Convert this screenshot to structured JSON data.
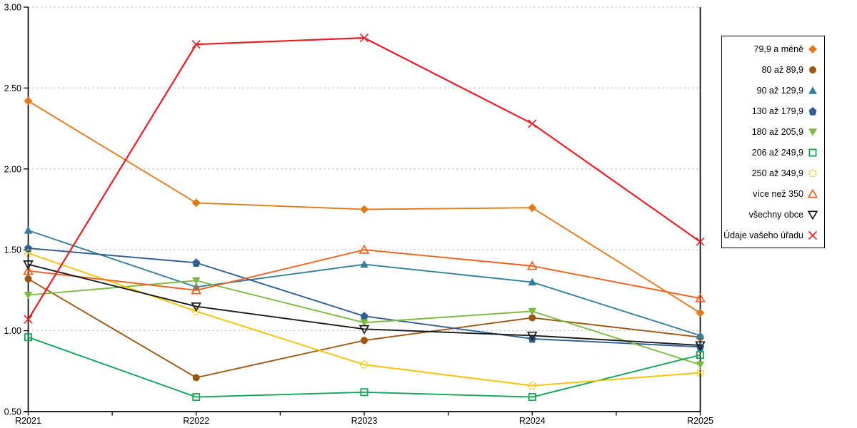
{
  "chart_data": {
    "type": "line",
    "title": "",
    "xlabel": "",
    "ylabel": "",
    "x": [
      "R2021",
      "R2022",
      "R2023",
      "R2024",
      "R2025"
    ],
    "ylim": [
      0.5,
      3.0
    ],
    "yticks": [
      0.5,
      1.0,
      1.5,
      2.0,
      2.5,
      3.0
    ],
    "ytick_labels": [
      "0.50",
      "1.00",
      "1.50",
      "2.00",
      "2.50",
      "3.00"
    ],
    "grid": "horizontal-dotted",
    "grid_color": "#bdbdbd",
    "axis_color": "#000000",
    "legend_position": "right",
    "series": [
      {
        "name": "79,9 a méně",
        "color": "#E07B1A",
        "marker": "diamond",
        "fill": true,
        "values": [
          2.42,
          1.79,
          1.75,
          1.76,
          1.11
        ]
      },
      {
        "name": "80 až 89,9",
        "color": "#9C5610",
        "marker": "circle",
        "fill": true,
        "values": [
          1.32,
          0.71,
          0.94,
          1.08,
          0.96
        ]
      },
      {
        "name": "90 až 129,9",
        "color": "#33809C",
        "marker": "triangle-up",
        "fill": true,
        "values": [
          1.62,
          1.27,
          1.41,
          1.3,
          0.97
        ]
      },
      {
        "name": "130 až 179,9",
        "color": "#305E92",
        "marker": "pentagon",
        "fill": true,
        "values": [
          1.51,
          1.42,
          1.09,
          0.95,
          0.9
        ]
      },
      {
        "name": "180 až 205,9",
        "color": "#7CBA41",
        "marker": "triangle-down",
        "fill": true,
        "values": [
          1.22,
          1.31,
          1.05,
          1.12,
          0.79
        ]
      },
      {
        "name": "206 až 249,9",
        "color": "#12A458",
        "marker": "square",
        "fill": false,
        "values": [
          0.96,
          0.59,
          0.62,
          0.59,
          0.85
        ]
      },
      {
        "name": "250 až 349,9",
        "color": "#F6C200",
        "marker": "circle-dashed",
        "fill": false,
        "values": [
          1.48,
          1.12,
          0.79,
          0.66,
          0.74
        ]
      },
      {
        "name": "více než 350",
        "color": "#F2611C",
        "marker": "triangle-up",
        "fill": false,
        "values": [
          1.37,
          1.25,
          1.5,
          1.4,
          1.2
        ]
      },
      {
        "name": "všechny obce",
        "color": "#1A1A1A",
        "marker": "triangle-down",
        "fill": false,
        "values": [
          1.41,
          1.15,
          1.01,
          0.97,
          0.91
        ]
      },
      {
        "name": "Údaje vašeho úřadu",
        "color": "#EA1C26",
        "marker": "x",
        "fill": false,
        "values": [
          1.07,
          2.77,
          2.81,
          2.28,
          1.55
        ],
        "line_width": 2.2
      }
    ]
  }
}
